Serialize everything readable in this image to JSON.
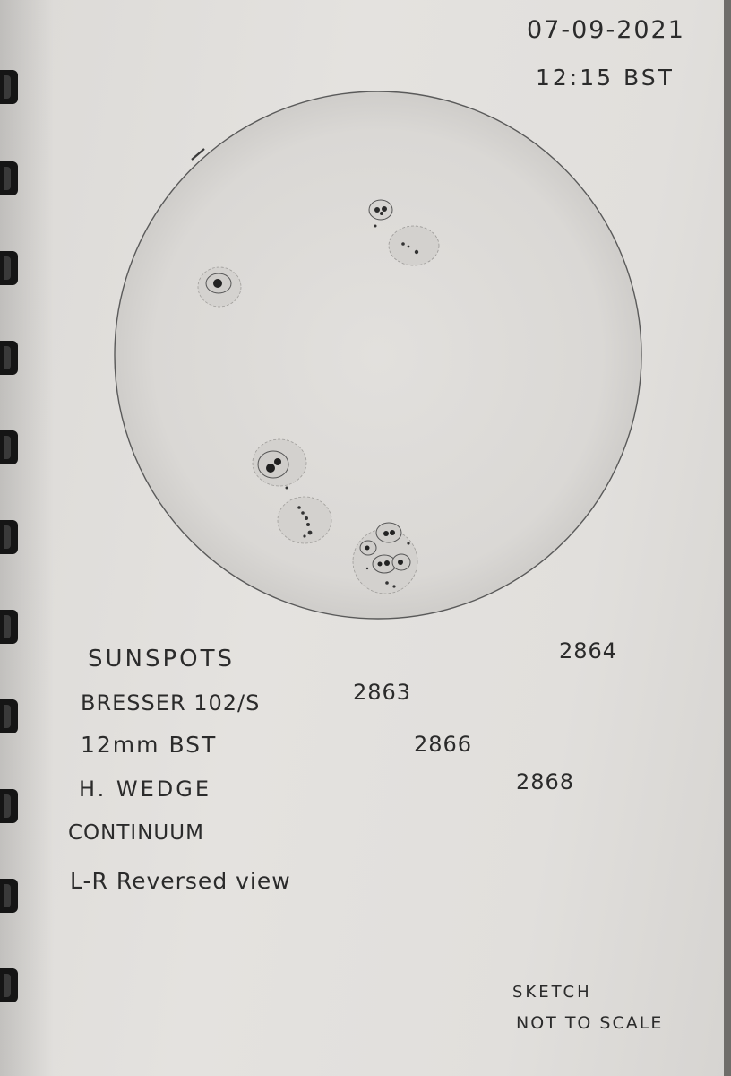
{
  "header": {
    "date": "07-09-2021",
    "time": "12:15 BST"
  },
  "notes": [
    "SUNSPOTS",
    "BRESSER 102/S",
    "12mm BST",
    "H. WEDGE",
    "CONTINUUM",
    "L-R Reversed view"
  ],
  "regions": [
    "2864",
    "2863",
    "2866",
    "2868"
  ],
  "footer": {
    "line1": "SKETCH",
    "line2": "NOT TO SCALE"
  }
}
